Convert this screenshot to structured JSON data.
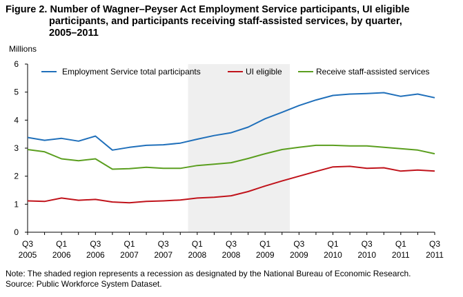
{
  "figure": {
    "title_prefix": "Figure 2.",
    "title_line1": "Number of Wagner–Peyser  Act Employment Service participants, UI eligible",
    "title_line2": "participants, and participants receiving  staff-assisted services, by quarter,",
    "title_line3": "2005–2011",
    "unit_label": "Millions",
    "note": "Note: The shaded region represents a recession as designated  by the National Bureau of Economic Research.",
    "source": "Source: Public Workforce System Dataset."
  },
  "chart_data": {
    "type": "line",
    "title": "Number of Wagner–Peyser Act Employment Service participants, UI eligible participants, and participants receiving staff-assisted services, by quarter, 2005–2011",
    "ylabel": "Millions",
    "xlabel": "",
    "ylim": [
      0,
      6
    ],
    "yticks": [
      0,
      1,
      2,
      3,
      4,
      5,
      6
    ],
    "grid": false,
    "legend_position": "top",
    "categories": [
      "Q3 2005",
      "Q4 2005",
      "Q1 2006",
      "Q2 2006",
      "Q3 2006",
      "Q4 2006",
      "Q1 2007",
      "Q2 2007",
      "Q3 2007",
      "Q4 2007",
      "Q1 2008",
      "Q2 2008",
      "Q3 2008",
      "Q4 2008",
      "Q1 2009",
      "Q2 2009",
      "Q3 2009",
      "Q4 2009",
      "Q1 2010",
      "Q2 2010",
      "Q3 2010",
      "Q4 2010",
      "Q1 2011",
      "Q2 2011",
      "Q3 2011"
    ],
    "tick_labels": [
      {
        "index": 0,
        "q": "Q3",
        "y": "2005"
      },
      {
        "index": 2,
        "q": "Q1",
        "y": "2006"
      },
      {
        "index": 4,
        "q": "Q3",
        "y": "2006"
      },
      {
        "index": 6,
        "q": "Q1",
        "y": "2007"
      },
      {
        "index": 8,
        "q": "Q3",
        "y": "2007"
      },
      {
        "index": 10,
        "q": "Q1",
        "y": "2008"
      },
      {
        "index": 12,
        "q": "Q3",
        "y": "2008"
      },
      {
        "index": 14,
        "q": "Q1",
        "y": "2009"
      },
      {
        "index": 16,
        "q": "Q3",
        "y": "2009"
      },
      {
        "index": 18,
        "q": "Q1",
        "y": "2010"
      },
      {
        "index": 20,
        "q": "Q3",
        "y": "2010"
      },
      {
        "index": 22,
        "q": "Q1",
        "y": "2011"
      },
      {
        "index": 24,
        "q": "Q3",
        "y": "2011"
      }
    ],
    "recession_shading": {
      "from": "Q4 2007",
      "to": "Q2 2009",
      "color": "#efefef"
    },
    "series": [
      {
        "name": "Employment Service total participants",
        "color": "#1f6fba",
        "values": [
          3.38,
          3.28,
          3.35,
          3.25,
          3.43,
          2.93,
          3.03,
          3.1,
          3.12,
          3.18,
          3.32,
          3.45,
          3.55,
          3.75,
          4.05,
          4.28,
          4.52,
          4.72,
          4.88,
          4.93,
          4.95,
          4.98,
          4.85,
          4.93,
          4.8
        ]
      },
      {
        "name": "UI eligible",
        "color": "#c0121a",
        "values": [
          1.12,
          1.1,
          1.22,
          1.14,
          1.17,
          1.08,
          1.05,
          1.1,
          1.12,
          1.15,
          1.22,
          1.25,
          1.3,
          1.45,
          1.65,
          1.83,
          2.0,
          2.17,
          2.33,
          2.35,
          2.28,
          2.3,
          2.18,
          2.22,
          2.18
        ]
      },
      {
        "name": "Receive staff-assisted services",
        "color": "#5a9e1e",
        "values": [
          2.95,
          2.87,
          2.62,
          2.55,
          2.62,
          2.25,
          2.27,
          2.32,
          2.28,
          2.28,
          2.38,
          2.43,
          2.48,
          2.63,
          2.8,
          2.95,
          3.03,
          3.1,
          3.1,
          3.08,
          3.08,
          3.03,
          2.98,
          2.93,
          2.8
        ]
      }
    ]
  }
}
